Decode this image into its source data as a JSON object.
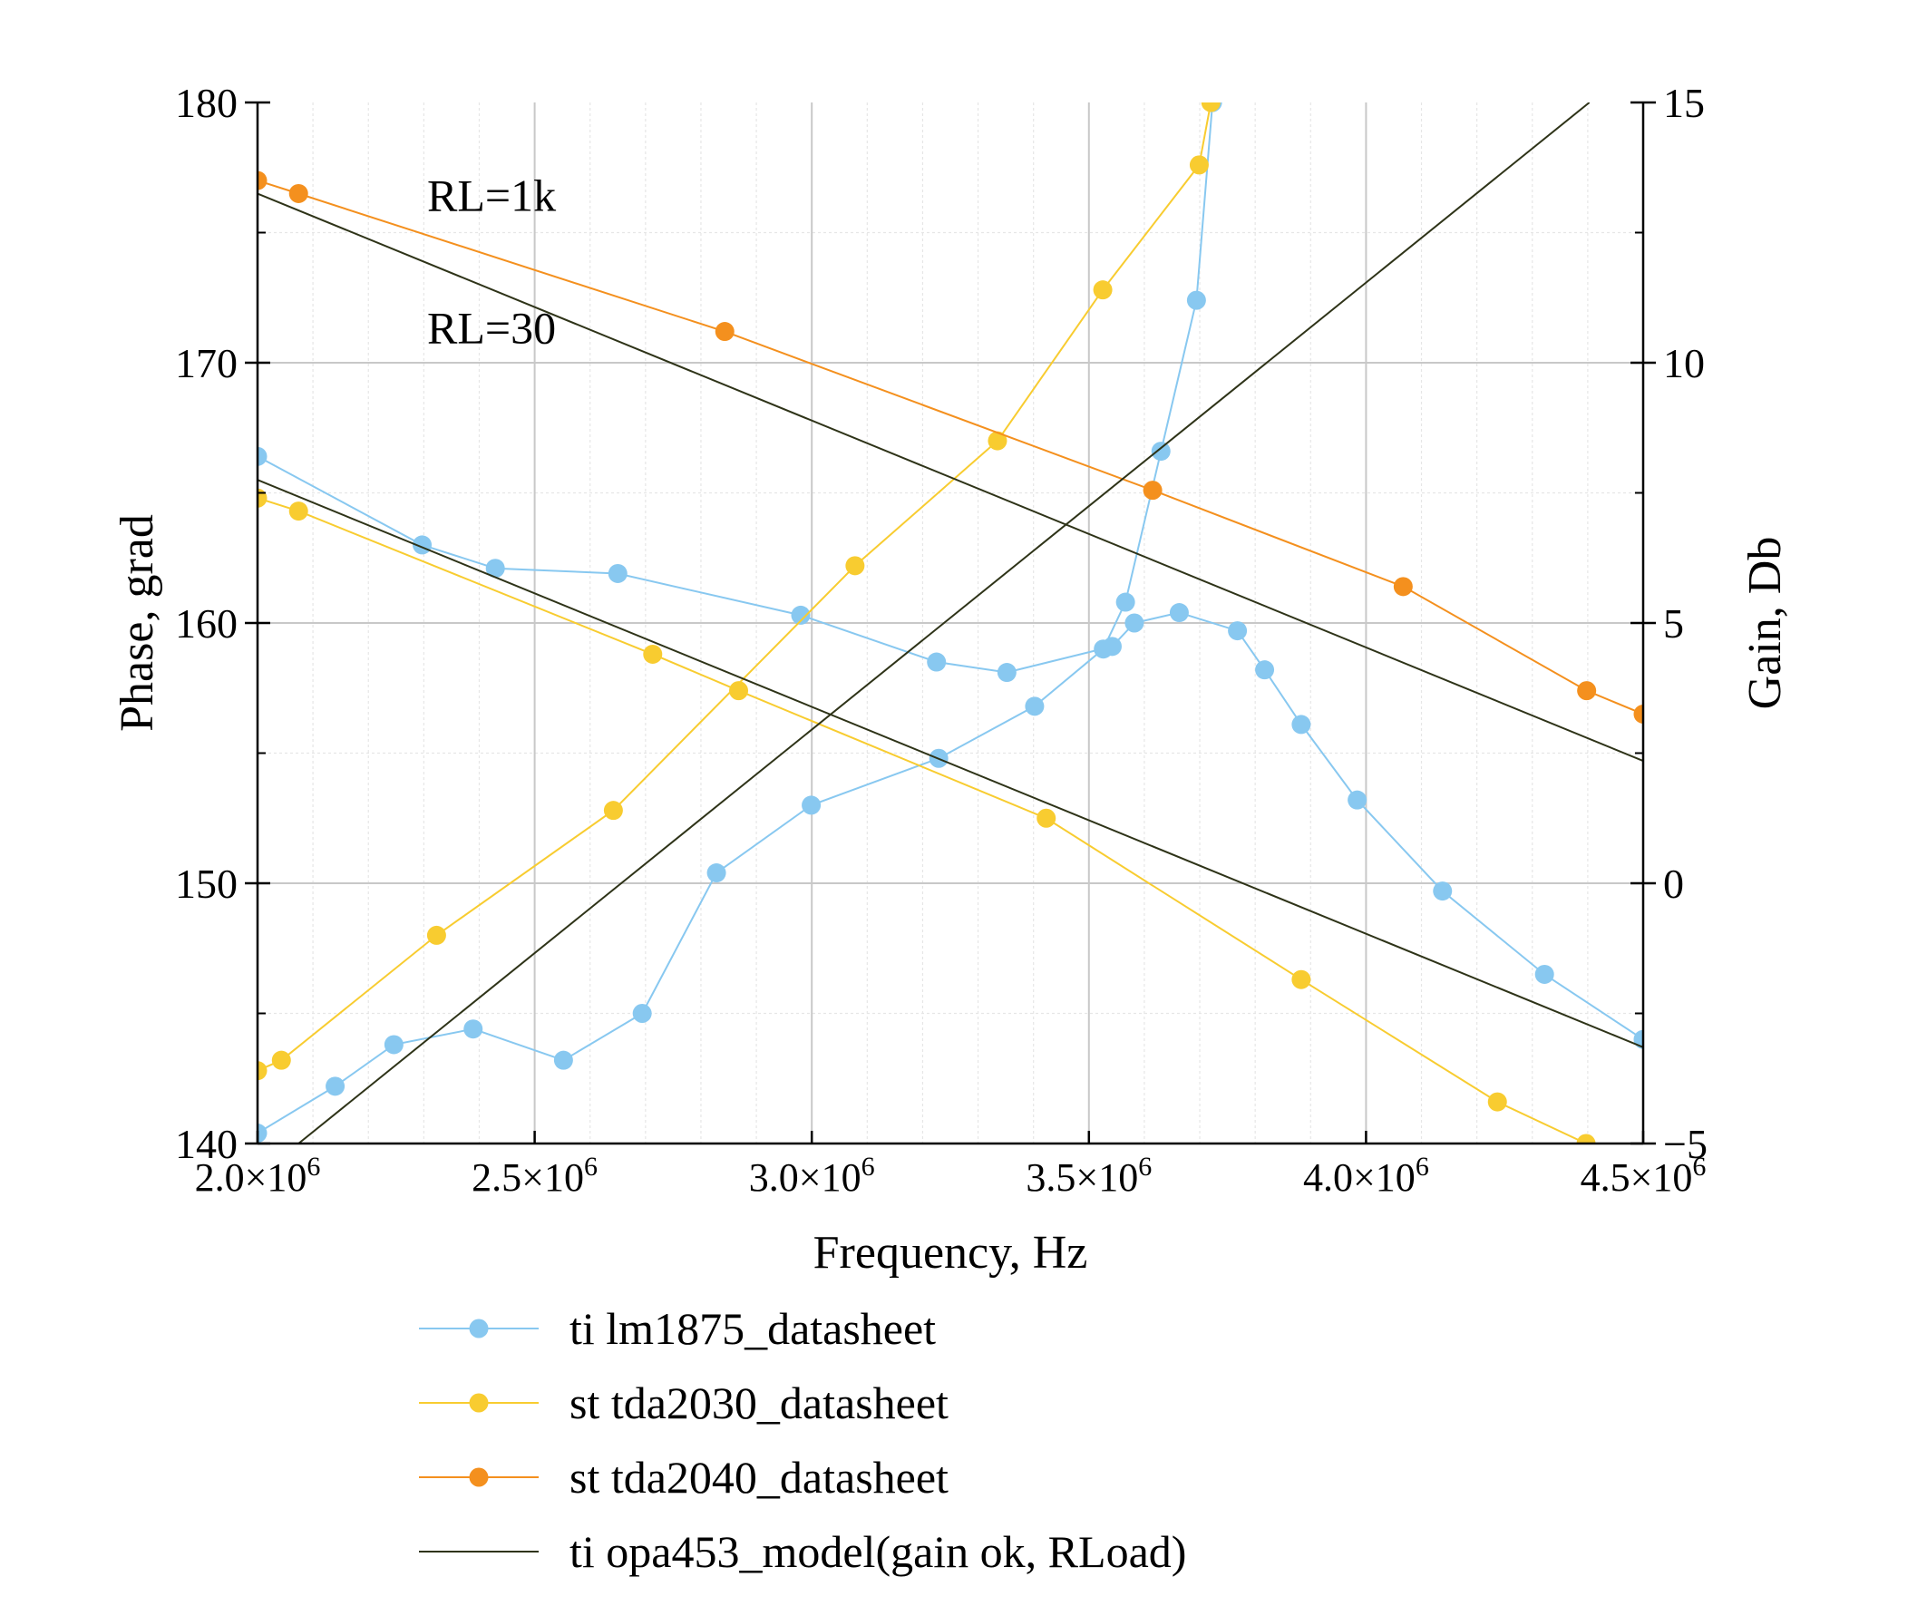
{
  "chart_data": {
    "type": "line",
    "xlabel": "Frequency, Hz",
    "ylabel_left": "Phase, grad",
    "ylabel_right": "Gain, Db",
    "xlim": [
      2000000,
      4500000
    ],
    "ylim_left": [
      140,
      180
    ],
    "ylim_right": [
      -5,
      15
    ],
    "x_major_ticks": [
      {
        "value": 2000000,
        "mantissa": "2.0×10",
        "exp": "6"
      },
      {
        "value": 2500000,
        "mantissa": "2.5×10",
        "exp": "6"
      },
      {
        "value": 3000000,
        "mantissa": "3.0×10",
        "exp": "6"
      },
      {
        "value": 3500000,
        "mantissa": "3.5×10",
        "exp": "6"
      },
      {
        "value": 4000000,
        "mantissa": "4.0×10",
        "exp": "6"
      },
      {
        "value": 4500000,
        "mantissa": "4.5×10",
        "exp": "6"
      }
    ],
    "y_left_ticks": [
      {
        "value": 140,
        "label": "140"
      },
      {
        "value": 150,
        "label": "150"
      },
      {
        "value": 160,
        "label": "160"
      },
      {
        "value": 170,
        "label": "170"
      },
      {
        "value": 180,
        "label": "180"
      }
    ],
    "y_right_ticks": [
      {
        "value": -5,
        "label": "−5"
      },
      {
        "value": 0,
        "label": "0"
      },
      {
        "value": 5,
        "label": "5"
      },
      {
        "value": 10,
        "label": "10"
      },
      {
        "value": 15,
        "label": "15"
      }
    ],
    "grid": true,
    "legend_position": "bottom",
    "annotations": [
      {
        "text": "RL=1k",
        "x": 2306000,
        "y": 176.4
      },
      {
        "text": "RL=30",
        "x": 2306000,
        "y": 171.3
      }
    ],
    "series": [
      {
        "name": "ti lm1875_datasheet",
        "color": "#88c8f0",
        "marker": true,
        "segments": [
          {
            "axis": "left",
            "points": [
              [
                2000000,
                166.4
              ],
              [
                2297000,
                163.0
              ],
              [
                2429000,
                162.1
              ],
              [
                2650000,
                161.9
              ],
              [
                2980000,
                160.3
              ],
              [
                3225000,
                158.5
              ],
              [
                3352000,
                158.1
              ],
              [
                3542000,
                159.1
              ],
              [
                3582000,
                160.0
              ],
              [
                3663000,
                160.4
              ],
              [
                3768000,
                159.7
              ],
              [
                3817000,
                158.2
              ],
              [
                3883000,
                156.1
              ],
              [
                3984000,
                153.2
              ],
              [
                4138000,
                149.7
              ],
              [
                4322000,
                146.5
              ],
              [
                4500000,
                144.0
              ]
            ]
          },
          {
            "axis": "right",
            "points": [
              [
                2000000,
                -4.8
              ],
              [
                2140000,
                -3.9
              ],
              [
                2246000,
                -3.1
              ],
              [
                2389000,
                -2.8
              ],
              [
                2552000,
                -3.4
              ],
              [
                2694000,
                -2.5
              ],
              [
                2828000,
                0.2
              ],
              [
                2999000,
                1.5
              ],
              [
                3229000,
                2.4
              ],
              [
                3402000,
                3.4
              ],
              [
                3526000,
                4.5
              ],
              [
                3566000,
                5.4
              ],
              [
                3630000,
                8.3
              ],
              [
                3694000,
                11.2
              ],
              [
                3723000,
                15.0
              ]
            ]
          }
        ]
      },
      {
        "name": "st tda2030_datasheet",
        "color": "#f8cc30",
        "marker": true,
        "segments": [
          {
            "axis": "left",
            "points": [
              [
                2000000,
                164.8
              ],
              [
                2074000,
                164.3
              ],
              [
                2713000,
                158.8
              ],
              [
                2868000,
                157.4
              ],
              [
                3423000,
                152.5
              ],
              [
                3883000,
                146.3
              ],
              [
                4237000,
                141.6
              ],
              [
                4397000,
                140.0
              ]
            ]
          },
          {
            "axis": "right",
            "points": [
              [
                2000000,
                -3.6
              ],
              [
                2043000,
                -3.4
              ],
              [
                2323000,
                -1.0
              ],
              [
                2642000,
                1.4
              ],
              [
                3078000,
                6.1
              ],
              [
                3335000,
                8.5
              ],
              [
                3525000,
                11.4
              ],
              [
                3699000,
                13.8
              ],
              [
                3720000,
                15.0
              ]
            ]
          }
        ]
      },
      {
        "name": "st tda2040_datasheet",
        "color": "#f4901e",
        "marker": true,
        "segments": [
          {
            "axis": "left",
            "points": [
              [
                2000000,
                177.0
              ],
              [
                2074000,
                176.5
              ],
              [
                2843000,
                171.2
              ],
              [
                3615000,
                165.1
              ],
              [
                4067000,
                161.4
              ],
              [
                4398000,
                157.4
              ],
              [
                4500000,
                156.5
              ]
            ]
          }
        ]
      },
      {
        "name": "ti opa453_model(gain ok, RLoad)",
        "color": "#2e3318",
        "marker": false,
        "segments": [
          {
            "axis": "left",
            "points": [
              [
                2000000,
                176.5
              ],
              [
                4500000,
                154.7
              ]
            ]
          },
          {
            "axis": "left",
            "points": [
              [
                2000000,
                165.5
              ],
              [
                4500000,
                143.7
              ]
            ]
          },
          {
            "axis": "right",
            "points": [
              [
                2074000,
                -5.0
              ],
              [
                4403000,
                15.0
              ]
            ]
          }
        ]
      }
    ]
  }
}
